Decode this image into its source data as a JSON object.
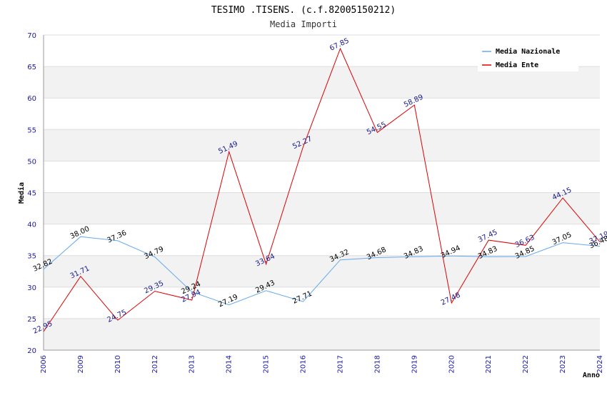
{
  "chart_data": {
    "type": "line",
    "title": "TESIMO .TISENS. (c.f.82005150212)",
    "subtitle": "Media Importi",
    "xlabel": "Anno",
    "ylabel": "Media",
    "ylim": [
      20,
      70
    ],
    "yticks": [
      20,
      25,
      30,
      35,
      40,
      45,
      50,
      55,
      60,
      65,
      70
    ],
    "grid": true,
    "legend_position": "top-right",
    "categories": [
      "2006",
      "2009",
      "2010",
      "2012",
      "2013",
      "2014",
      "2015",
      "2016",
      "2017",
      "2018",
      "2019",
      "2020",
      "2021",
      "2022",
      "2023",
      "2024"
    ],
    "series": [
      {
        "name": "Media Nazionale",
        "color": "#66aaee",
        "label_color": "#000000",
        "values": [
          32.82,
          38.0,
          37.36,
          34.79,
          29.24,
          27.19,
          29.43,
          27.71,
          34.32,
          34.68,
          34.83,
          34.94,
          34.83,
          34.85,
          37.05,
          36.48
        ],
        "labels": [
          "32.82",
          "38.00",
          "37.36",
          "34.79",
          "29.24",
          "27.19",
          "29.43",
          "27.71",
          "34.32",
          "34.68",
          "34.83",
          "34.94",
          "34.83",
          "34.85",
          "37.05",
          "36.48"
        ]
      },
      {
        "name": "Media Ente",
        "color": "#dd0000",
        "label_color": "#1a1a8c",
        "values": [
          22.95,
          31.71,
          24.75,
          29.35,
          27.94,
          51.49,
          33.64,
          52.27,
          67.85,
          54.55,
          58.89,
          27.48,
          37.45,
          36.63,
          44.15,
          37.19
        ],
        "labels": [
          "22.95",
          "31.71",
          "24.75",
          "29.35",
          "27.94",
          "51.49",
          "33.64",
          "52.27",
          "67.85",
          "54.55",
          "58.89",
          "27.48",
          "37.45",
          "36.63",
          "44.15",
          "37.19"
        ]
      }
    ]
  },
  "colors": {
    "band": "#f2f2f2",
    "grid": "#dddddd",
    "tick_text": "#1a1aa6"
  }
}
